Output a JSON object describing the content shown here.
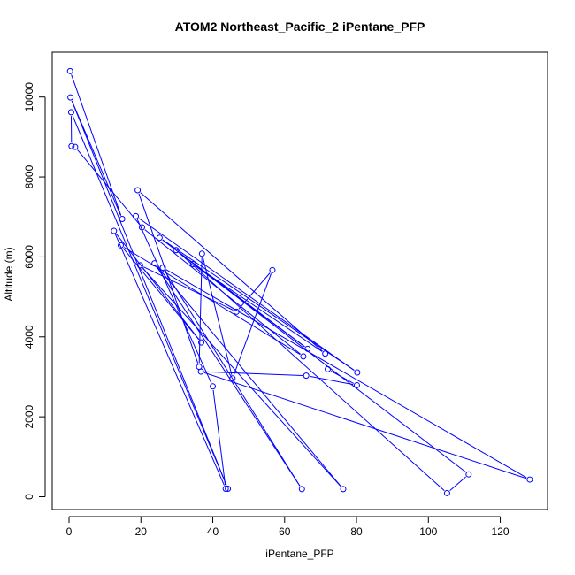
{
  "chart_data": {
    "type": "scatter",
    "title": "ATOM2 Northeast_Pacific_2 iPentane_PFP",
    "xlabel": "iPentane_PFP",
    "ylabel": "Altitude (m)",
    "xlim": [
      0,
      130
    ],
    "ylim": [
      0,
      10800
    ],
    "x_ticks": [
      0,
      20,
      40,
      60,
      80,
      100,
      120
    ],
    "y_ticks": [
      0,
      2000,
      4000,
      6000,
      8000,
      10000
    ],
    "grid": false,
    "connected": true,
    "color": "#0000ff",
    "points": [
      {
        "x": 0.3,
        "y": 10650
      },
      {
        "x": 14.8,
        "y": 6950
      },
      {
        "x": 0.4,
        "y": 9990
      },
      {
        "x": 44.2,
        "y": 200
      },
      {
        "x": 0.6,
        "y": 9620
      },
      {
        "x": 0.7,
        "y": 8770
      },
      {
        "x": 1.7,
        "y": 8750
      },
      {
        "x": 20.3,
        "y": 6740
      },
      {
        "x": 65.2,
        "y": 3510
      },
      {
        "x": 14.4,
        "y": 6290
      },
      {
        "x": 36.8,
        "y": 3860
      },
      {
        "x": 12.5,
        "y": 6650
      },
      {
        "x": 43.6,
        "y": 200
      },
      {
        "x": 40.0,
        "y": 2760
      },
      {
        "x": 18.6,
        "y": 7020
      },
      {
        "x": 80.2,
        "y": 3110
      },
      {
        "x": 25.2,
        "y": 6480
      },
      {
        "x": 111.2,
        "y": 560
      },
      {
        "x": 105.2,
        "y": 90
      },
      {
        "x": 29.8,
        "y": 6170
      },
      {
        "x": 66.4,
        "y": 3700
      },
      {
        "x": 34.5,
        "y": 5820
      },
      {
        "x": 71.3,
        "y": 3580
      },
      {
        "x": 19.1,
        "y": 7670
      },
      {
        "x": 36.2,
        "y": 3250
      },
      {
        "x": 37.0,
        "y": 6080
      },
      {
        "x": 45.5,
        "y": 2960
      },
      {
        "x": 56.6,
        "y": 5670
      },
      {
        "x": 46.6,
        "y": 4630
      },
      {
        "x": 19.8,
        "y": 5790
      },
      {
        "x": 76.3,
        "y": 190
      },
      {
        "x": 23.8,
        "y": 5840
      },
      {
        "x": 64.8,
        "y": 190
      },
      {
        "x": 26.1,
        "y": 5730
      },
      {
        "x": 128.2,
        "y": 430
      },
      {
        "x": 36.7,
        "y": 3130
      },
      {
        "x": 66.0,
        "y": 3030
      },
      {
        "x": 80.1,
        "y": 2790
      },
      {
        "x": 72.0,
        "y": 3190
      }
    ]
  }
}
